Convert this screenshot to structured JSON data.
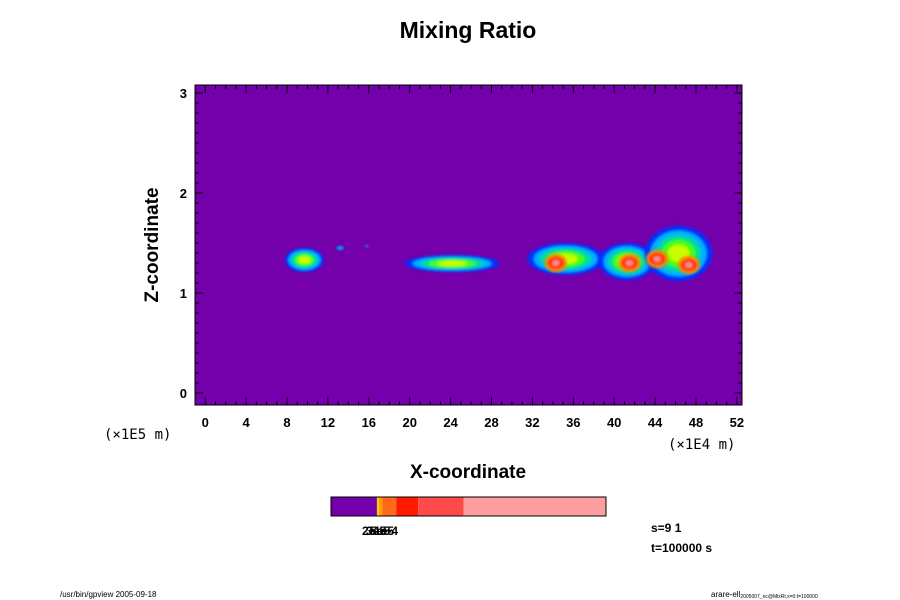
{
  "chart_data": {
    "type": "heatmap",
    "title": "Mixing Ratio",
    "xlabel": "X-coordinate",
    "ylabel": "Z-coordinate",
    "x_scale_note": "(×1E4 m)",
    "y_scale_note": "(×1E5 m)",
    "xlim": [
      -1,
      52.5
    ],
    "ylim": [
      -0.12,
      3.08
    ],
    "x_ticks": [
      0,
      4,
      8,
      12,
      16,
      20,
      24,
      28,
      32,
      36,
      40,
      44,
      48,
      52
    ],
    "y_ticks": [
      0,
      1,
      2,
      3
    ],
    "background_color": "#7300aa",
    "plumes": [
      {
        "x": [
          7.8,
          11.6
        ],
        "z": [
          1.21,
          1.45
        ]
      },
      {
        "x": [
          12.8,
          13.6
        ],
        "z": [
          1.43,
          1.47
        ]
      },
      {
        "x": [
          15.6,
          16.0
        ],
        "z": [
          1.46,
          1.48
        ]
      },
      {
        "x": [
          19.5,
          28.8
        ],
        "z": [
          1.21,
          1.38
        ]
      },
      {
        "x": [
          31.5,
          39.0
        ],
        "z": [
          1.18,
          1.5
        ]
      },
      {
        "x": [
          38.5,
          44.0
        ],
        "z": [
          1.13,
          1.5
        ]
      },
      {
        "x": [
          43.0,
          49.6
        ],
        "z": [
          1.12,
          1.67
        ]
      }
    ],
    "hot_spots": [
      {
        "x": 34.3,
        "z": 1.3
      },
      {
        "x": 41.5,
        "z": 1.3
      },
      {
        "x": 44.2,
        "z": 1.34
      },
      {
        "x": 47.3,
        "z": 1.28
      }
    ],
    "colorbar": {
      "segments": [
        {
          "color": "#7300aa",
          "share": 0.167
        },
        {
          "color": "#ffcc00",
          "share": 0.008
        },
        {
          "color": "#ff9900",
          "share": 0.012
        },
        {
          "color": "#ff6a1a",
          "share": 0.05
        },
        {
          "color": "#ff1a00",
          "share": 0.08
        },
        {
          "color": "#ff4a4a",
          "share": 0.165
        },
        {
          "color": "#ff9e9e",
          "share": 0.518
        }
      ],
      "overlapping_labels": [
        "2e-5",
        "3e-5",
        "5e-5",
        "1e-4"
      ]
    }
  },
  "annotations": {
    "step": "s=9 1",
    "time": "t=100000 s"
  },
  "footer": {
    "left": "/usr/bin/gpview 2005-09-18",
    "right_main": "arare-ell",
    "right_sub": "2005007_nc@MixRt,x=0:t=100000"
  }
}
